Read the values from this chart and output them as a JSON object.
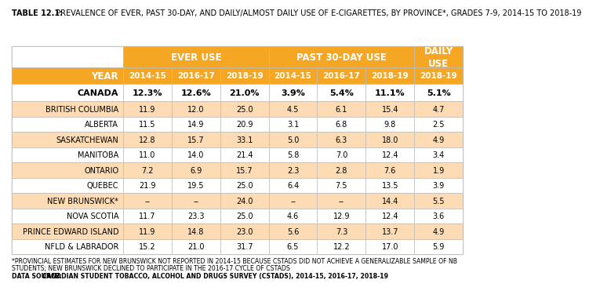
{
  "title_bold": "TABLE 12.1:",
  "title_rest": " PREVALENCE OF EVER, PAST 30-DAY, AND DAILY/ALMOST DAILY USE OF E-CIGARETTES, BY PROVINCE*, GRADES 7-9, 2014-15 TO 2018-19",
  "year_labels": [
    "2014-15",
    "2016-17",
    "2018-19",
    "2014-15",
    "2016-17",
    "2018-19",
    "2018-19"
  ],
  "rows": [
    [
      "CANADA",
      "12.3%",
      "12.6%",
      "21.0%",
      "3.9%",
      "5.4%",
      "11.1%",
      "5.1%"
    ],
    [
      "BRITISH COLUMBIA",
      "11.9",
      "12.0",
      "25.0",
      "4.5",
      "6.1",
      "15.4",
      "4.7"
    ],
    [
      "ALBERTA",
      "11.5",
      "14.9",
      "20.9",
      "3.1",
      "6.8",
      "9.8",
      "2.5"
    ],
    [
      "SASKATCHEWAN",
      "12.8",
      "15.7",
      "33.1",
      "5.0",
      "6.3",
      "18.0",
      "4.9"
    ],
    [
      "MANITOBA",
      "11.0",
      "14.0",
      "21.4",
      "5.8",
      "7.0",
      "12.4",
      "3.4"
    ],
    [
      "ONTARIO",
      "7.2",
      "6.9",
      "15.7",
      "2.3",
      "2.8",
      "7.6",
      "1.9"
    ],
    [
      "QUEBEC",
      "21.9",
      "19.5",
      "25.0",
      "6.4",
      "7.5",
      "13.5",
      "3.9"
    ],
    [
      "NEW BRUNSWICK*",
      "--",
      "--",
      "24.0",
      "--",
      "--",
      "14.4",
      "5.5"
    ],
    [
      "NOVA SCOTIA",
      "11.7",
      "23.3",
      "25.0",
      "4.6",
      "12.9",
      "12.4",
      "3.6"
    ],
    [
      "PRINCE EDWARD ISLAND",
      "11.9",
      "14.8",
      "23.0",
      "5.6",
      "7.3",
      "13.7",
      "4.9"
    ],
    [
      "NFLD & LABRADOR",
      "15.2",
      "21.0",
      "31.7",
      "6.5",
      "12.2",
      "17.0",
      "5.9"
    ]
  ],
  "row_bg": [
    "#FFFFFF",
    "#FDDCB5",
    "#FFFFFF",
    "#FDDCB5",
    "#FFFFFF",
    "#FDDCB5",
    "#FFFFFF",
    "#FDDCB5",
    "#FFFFFF",
    "#FDDCB5",
    "#FFFFFF"
  ],
  "footnote1": "*PROVINCIAL ESTIMATES FOR NEW BRUNSWICK NOT REPORTED IN 2014-15 BECAUSE CSTADS DID NOT ACHIEVE A GENERALIZABLE SAMPLE OF NB",
  "footnote2": "STUDENTS; NEW BRUNSWICK DECLINED TO PARTICIPATE IN THE 2016-17 CYCLE OF CSTADS",
  "footnote3_label": "DATA SOURCE: ",
  "footnote3_value": "CANADIAN STUDENT TOBACCO, ALCOHOL AND DRUGS SURVEY (CSTADS), 2014-15, 2016-17, 2018-19",
  "color_orange": "#F5A623",
  "color_orange_light": "#FDDCB5",
  "color_white": "#FFFFFF",
  "color_border": "#BBBBBB",
  "col_widths_rel": [
    2.3,
    1.0,
    1.0,
    1.0,
    1.0,
    1.0,
    1.0,
    1.0
  ]
}
